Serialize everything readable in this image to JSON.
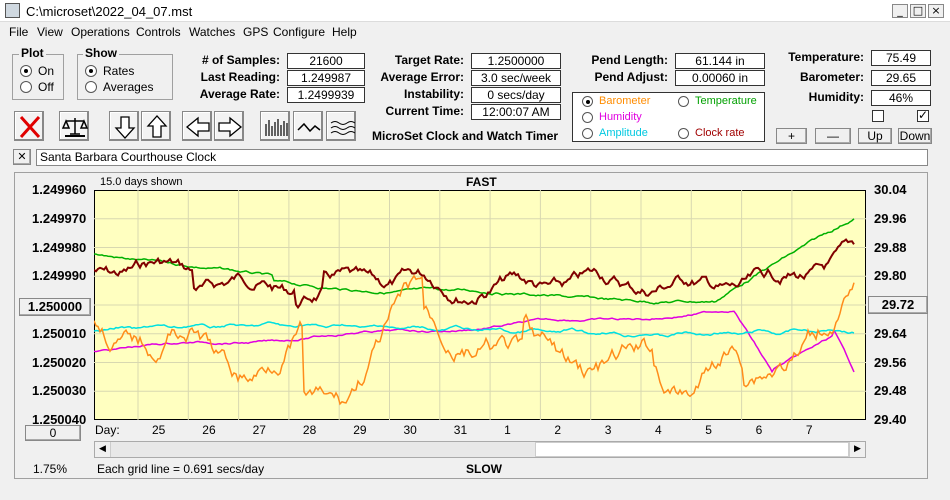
{
  "window": {
    "title": "C:\\microset\\2022_04_07.mst",
    "minimize": "_",
    "maximize": "□",
    "close": "×"
  },
  "menu": [
    "File",
    "View",
    "Operations",
    "Controls",
    "Watches",
    "GPS",
    "Configure",
    "Help"
  ],
  "plot_group": {
    "title": "Plot",
    "on": "On",
    "off": "Off",
    "selected": "On"
  },
  "show_group": {
    "title": "Show",
    "rates": "Rates",
    "averages": "Averages",
    "selected": "Rates"
  },
  "stats": {
    "samples_label": "# of Samples:",
    "samples": "21600",
    "last_label": "Last Reading:",
    "last": "1.249987",
    "avg_label": "Average Rate:",
    "avg": "1.2499939"
  },
  "rates": {
    "target_label": "Target Rate:",
    "target": "1.2500000",
    "err_label": "Average Error:",
    "err": "3.0 sec/week",
    "instab_label": "Instability:",
    "instab": "0 secs/day",
    "time_label": "Current Time:",
    "time": "12:00:07 AM"
  },
  "pend": {
    "len_label": "Pend Length:",
    "len": "61.144 in",
    "adj_label": "Pend Adjust:",
    "adj": "0.00060 in"
  },
  "env": {
    "temp_label": "Temperature:",
    "temp": "75.49",
    "baro_label": "Barometer:",
    "baro": "29.65",
    "hum_label": "Humidity:",
    "hum": "46%"
  },
  "app_caption": "MicroSet Clock and Watch Timer",
  "sensors": [
    {
      "label": "Barometer",
      "color": "#ff8c00",
      "selected": true
    },
    {
      "label": "Temperature",
      "color": "#00a000",
      "selected": false
    },
    {
      "label": "Humidity",
      "color": "#e000e0",
      "selected": false
    },
    {
      "label": "Amplitude",
      "color": "#00c8e0",
      "selected": false
    },
    {
      "label": "Clock rate",
      "color": "#a00000",
      "selected": false
    }
  ],
  "adjust_buttons": {
    "plus": "+",
    "minus": "—",
    "up": "Up",
    "down": "Down"
  },
  "clock_name": "Santa Barbara Courthouse Clock",
  "clear_label": "✕",
  "graph": {
    "days_shown": "15.0 days shown",
    "fast": "FAST",
    "slow": "SLOW",
    "left_ticks": [
      "1.249960",
      "1.249970",
      "1.249980",
      "1.249990",
      "1.250000",
      "1.250010",
      "1.250020",
      "1.250030",
      "1.250040"
    ],
    "right_ticks": [
      "30.04",
      "29.96",
      "29.88",
      "29.80",
      "29.72",
      "29.64",
      "29.56",
      "29.48",
      "29.40"
    ],
    "center_left": "1.250000",
    "center_right": "29.72",
    "day_label": "Day:",
    "days": [
      "25",
      "26",
      "27",
      "28",
      "29",
      "30",
      "31",
      "1",
      "2",
      "3",
      "4",
      "5",
      "6",
      "7"
    ],
    "offset_value": "0",
    "grid_note": "Each grid line = 0.691 secs/day",
    "percent": "1.75%",
    "bg": "#ffffc0"
  }
}
